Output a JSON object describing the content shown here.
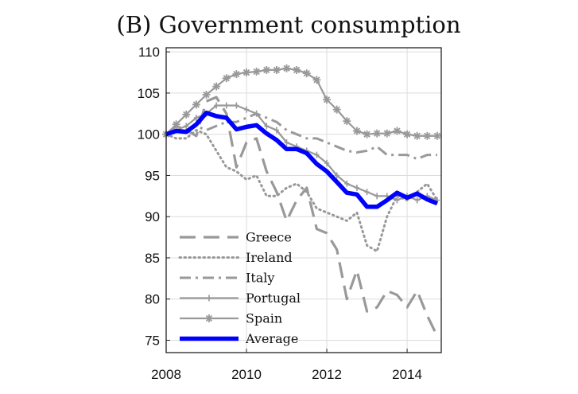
{
  "chart_data": {
    "type": "line",
    "title": "(B) Government consumption",
    "xlabel": "",
    "ylabel": "",
    "xlim": [
      2008,
      2014.85
    ],
    "ylim": [
      73.5,
      110.5
    ],
    "x_ticks": [
      "2008",
      "2010",
      "2012",
      "2014"
    ],
    "y_ticks": [
      "75",
      "80",
      "85",
      "90",
      "95",
      "100",
      "105",
      "110"
    ],
    "grid": true,
    "legend_position": "bottom-left",
    "x": [
      2008.0,
      2008.25,
      2008.5,
      2008.75,
      2009.0,
      2009.25,
      2009.5,
      2009.75,
      2010.0,
      2010.25,
      2010.5,
      2010.75,
      2011.0,
      2011.25,
      2011.5,
      2011.75,
      2012.0,
      2012.25,
      2012.5,
      2012.75,
      2013.0,
      2013.25,
      2013.5,
      2013.75,
      2014.0,
      2014.25,
      2014.5,
      2014.75
    ],
    "series": [
      {
        "name": "Greece",
        "color": "#999999",
        "values": [
          100.0,
          101.0,
          100.5,
          99.8,
          104.0,
          104.5,
          102.5,
          96.0,
          99.0,
          99.5,
          95.5,
          93.0,
          89.5,
          92.0,
          93.5,
          88.5,
          88.0,
          86.0,
          80.0,
          83.5,
          78.5,
          79.0,
          81.0,
          80.5,
          79.0,
          81.0,
          78.0,
          75.5
        ]
      },
      {
        "name": "Ireland",
        "color": "#999999",
        "values": [
          100.0,
          99.5,
          99.5,
          100.5,
          100.0,
          98.0,
          96.0,
          95.5,
          94.5,
          95.0,
          92.5,
          92.5,
          93.5,
          94.0,
          93.0,
          91.0,
          90.5,
          90.0,
          89.5,
          90.5,
          86.5,
          85.8,
          90.0,
          92.5,
          92.0,
          93.0,
          94.0,
          92.0
        ]
      },
      {
        "name": "Italy",
        "color": "#999999",
        "values": [
          100.0,
          101.0,
          100.5,
          101.0,
          100.5,
          101.0,
          101.5,
          101.5,
          102.0,
          102.5,
          102.0,
          101.5,
          100.5,
          100.0,
          99.5,
          99.5,
          99.0,
          98.5,
          98.0,
          97.8,
          98.0,
          98.5,
          97.5,
          97.5,
          97.5,
          97.0,
          97.5,
          97.5
        ]
      },
      {
        "name": "Portugal",
        "color": "#999999",
        "values": [
          100.0,
          100.5,
          101.0,
          102.0,
          102.5,
          103.5,
          103.5,
          103.5,
          103.0,
          102.5,
          101.0,
          100.5,
          99.0,
          98.5,
          98.0,
          97.5,
          96.5,
          95.0,
          94.0,
          93.5,
          93.0,
          92.5,
          92.5,
          92.0,
          92.5,
          92.0,
          92.5,
          92.0
        ]
      },
      {
        "name": "Spain",
        "color": "#999999",
        "values": [
          100.0,
          101.2,
          102.4,
          103.6,
          104.8,
          105.8,
          106.8,
          107.3,
          107.5,
          107.6,
          107.8,
          107.8,
          108.0,
          107.8,
          107.4,
          106.6,
          104.2,
          103.0,
          101.6,
          100.4,
          100.0,
          100.1,
          100.1,
          100.4,
          100.0,
          99.8,
          99.8,
          99.8
        ]
      },
      {
        "name": "Average",
        "color": "#0000ff",
        "values": [
          100.0,
          100.4,
          100.3,
          101.2,
          102.6,
          102.2,
          102.0,
          100.6,
          100.9,
          101.1,
          100.1,
          99.3,
          98.2,
          98.2,
          97.7,
          96.4,
          95.5,
          94.2,
          92.9,
          92.7,
          91.2,
          91.2,
          92.0,
          92.9,
          92.3,
          92.8,
          92.1,
          91.6
        ]
      }
    ]
  }
}
